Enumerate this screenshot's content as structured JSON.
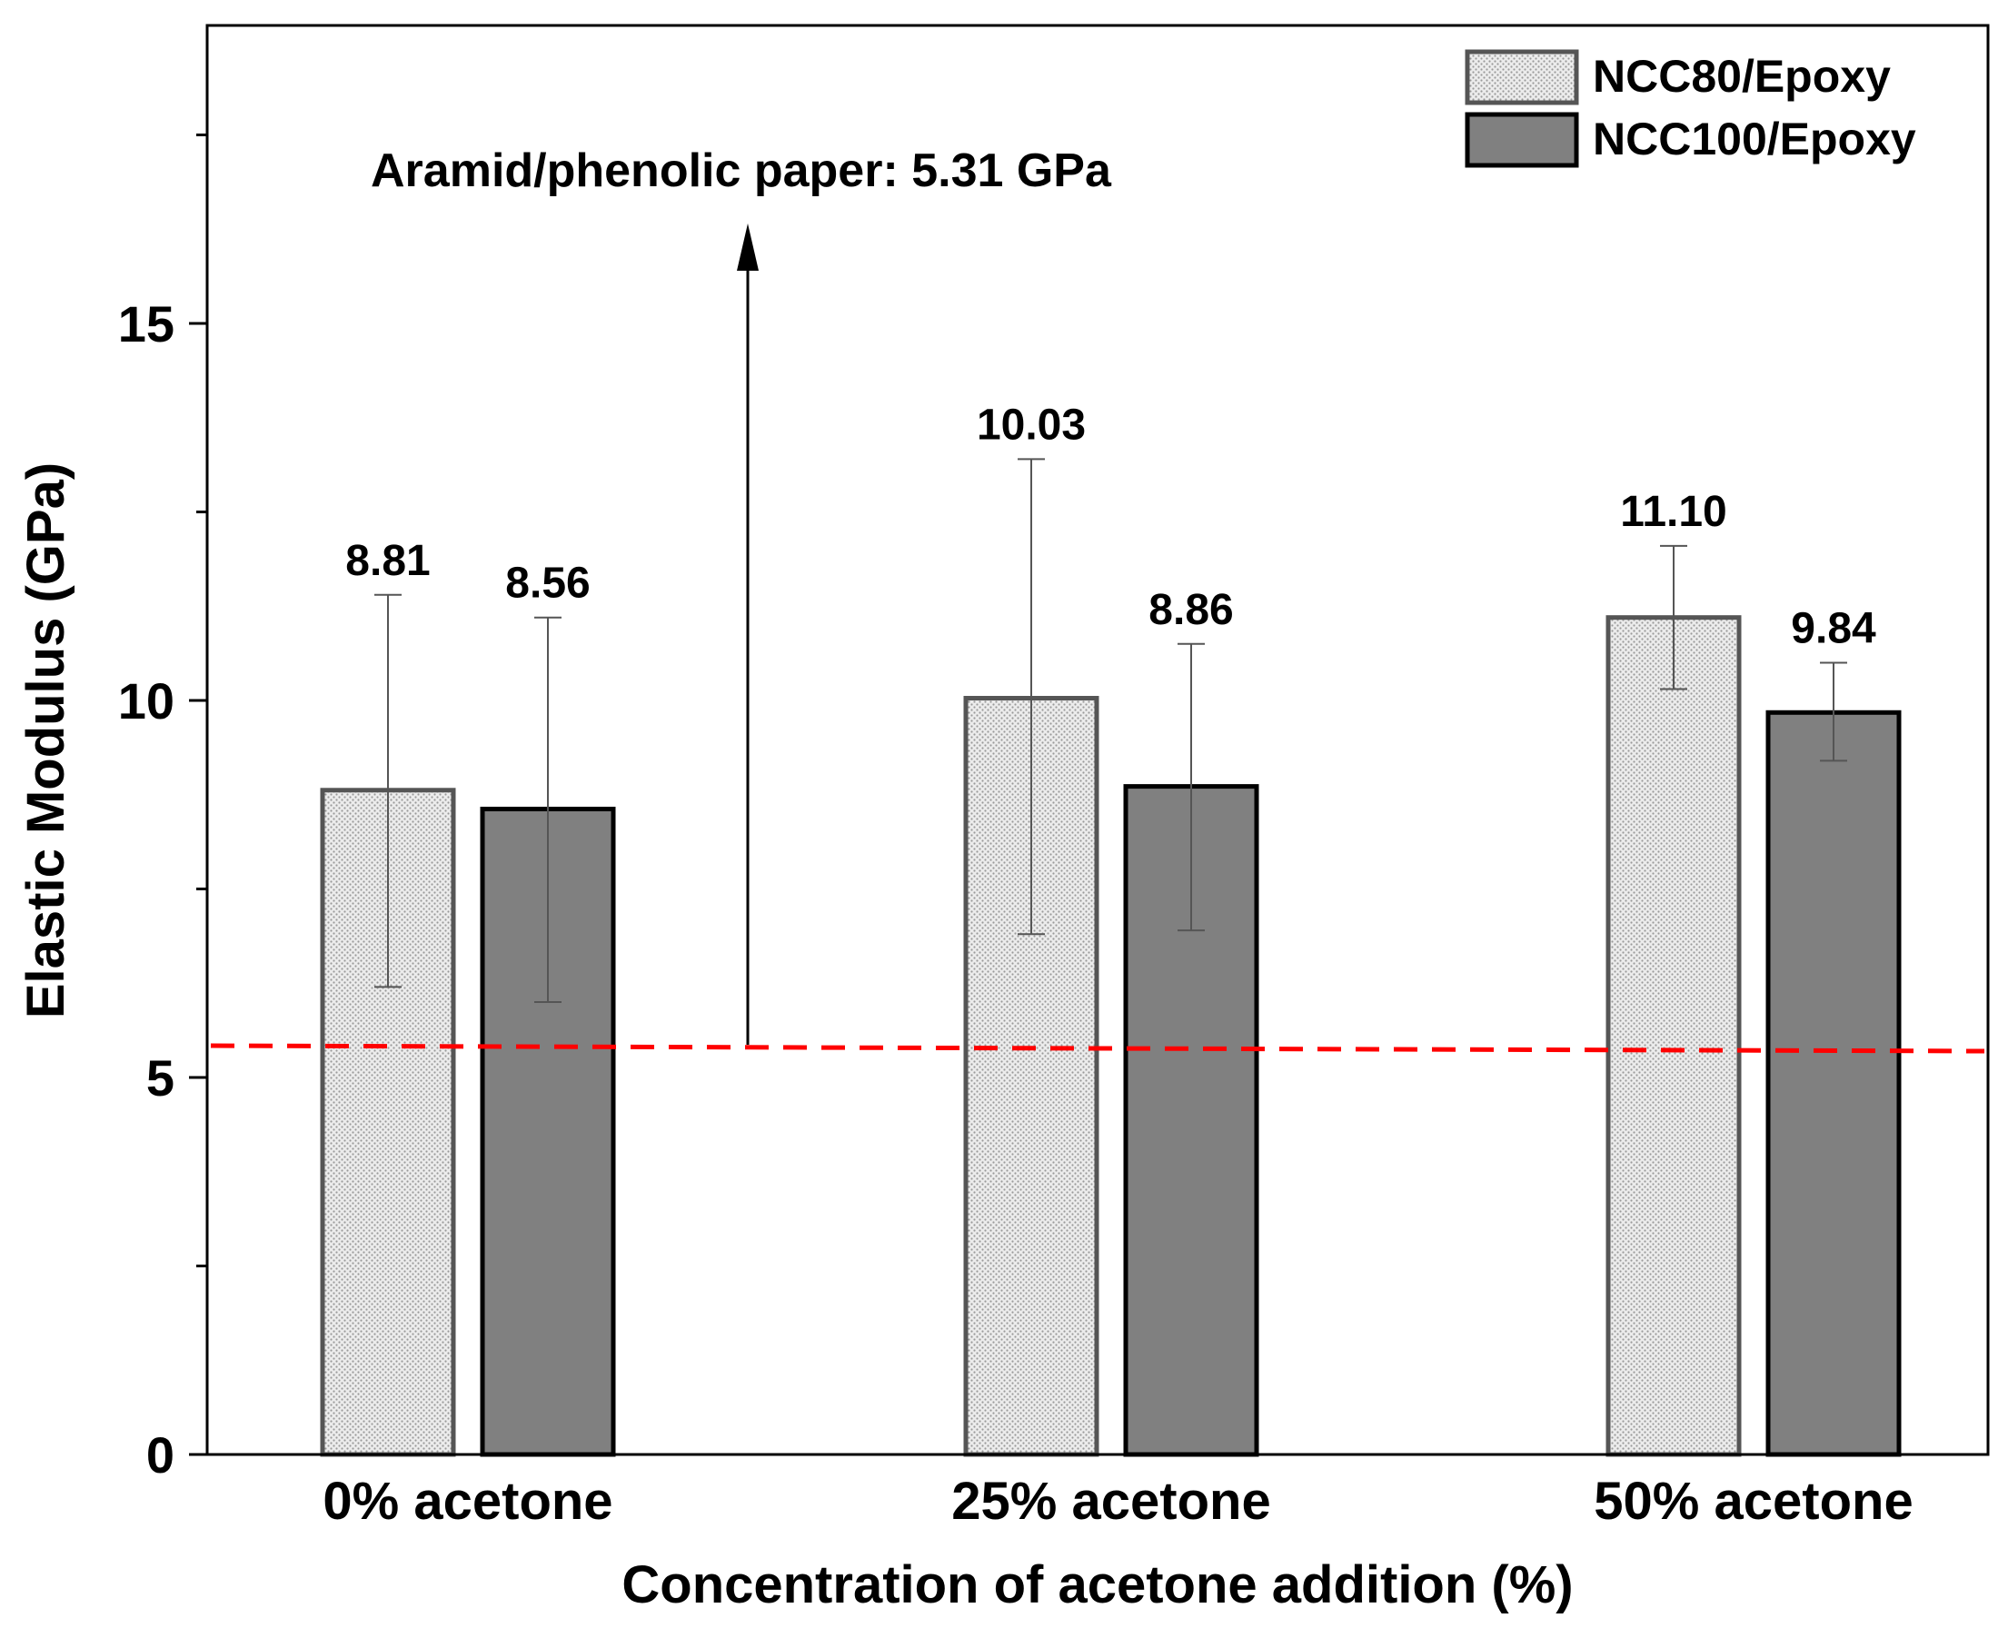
{
  "chart_data": {
    "type": "bar",
    "title": "",
    "xlabel": "Concentration of acetone addition (%)",
    "ylabel": "Elastic Modulus (GPa)",
    "categories": [
      "0% acetone",
      "25% acetone",
      "50% acetone"
    ],
    "ylim": [
      0,
      19.2
    ],
    "yticks": [
      0,
      5,
      10,
      15
    ],
    "yticks_minor": [
      2.5,
      7.5,
      12.5,
      17.5
    ],
    "grid": false,
    "legend_position": "top-right",
    "series": [
      {
        "name": "NCC80/Epoxy",
        "values": [
          8.81,
          10.03,
          11.1
        ],
        "value_labels": [
          "8.81",
          "10.03",
          "11.10"
        ],
        "error_low": [
          6.2,
          6.9,
          10.15
        ],
        "error_high": [
          11.4,
          13.2,
          12.05
        ],
        "fill": "#e6e6e6",
        "edge": "#555555",
        "pattern": "dotted"
      },
      {
        "name": "NCC100/Epoxy",
        "values": [
          8.56,
          8.86,
          9.84
        ],
        "value_labels": [
          "8.56",
          "8.86",
          "9.84"
        ],
        "error_low": [
          6.0,
          6.95,
          9.2
        ],
        "error_high": [
          11.1,
          10.75,
          10.5
        ],
        "fill": "#808080",
        "edge": "#000000",
        "pattern": "solid"
      }
    ],
    "reference_line": {
      "value": 5.31,
      "color": "#ff0000",
      "style": "dashed"
    },
    "annotation": {
      "text": "Aramid/phenolic paper: 5.31 GPa",
      "arrow": "up"
    }
  }
}
